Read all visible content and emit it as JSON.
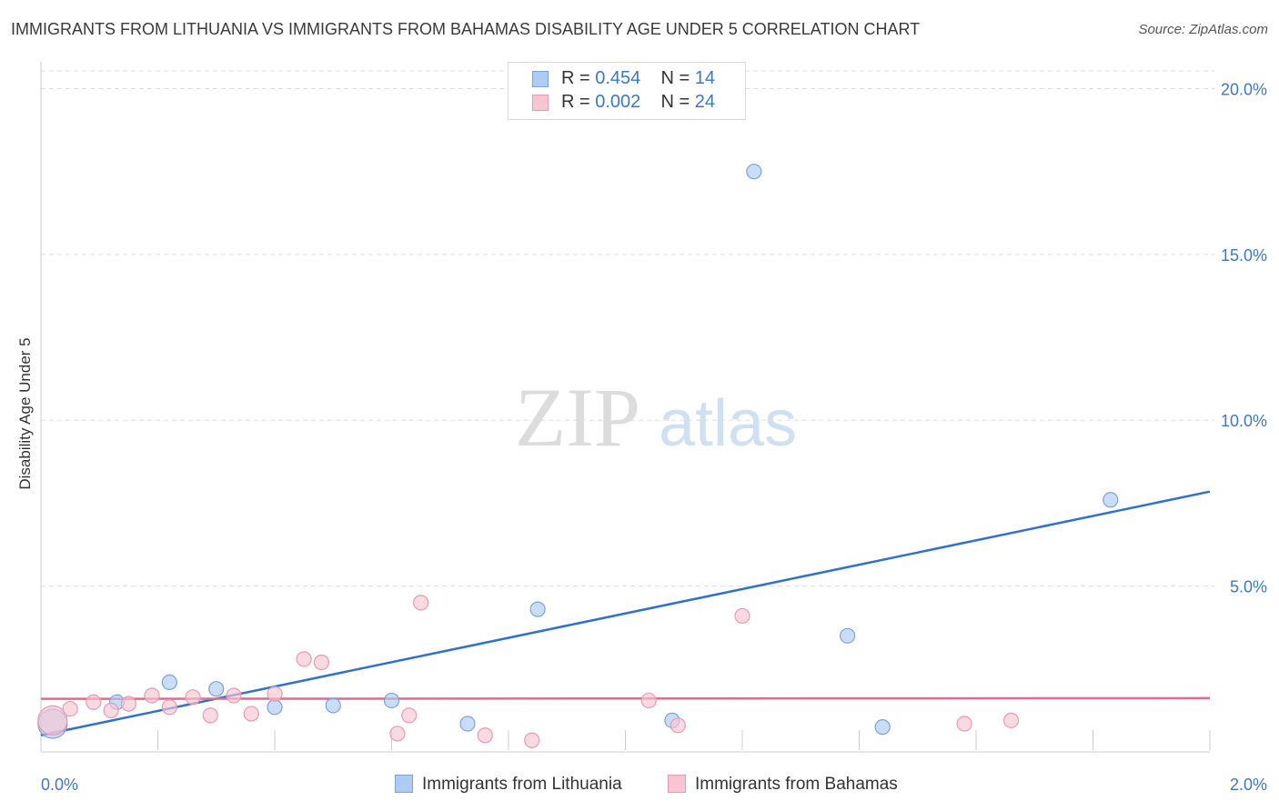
{
  "title": "IMMIGRANTS FROM LITHUANIA VS IMMIGRANTS FROM BAHAMAS DISABILITY AGE UNDER 5 CORRELATION CHART",
  "source": "Source: ZipAtlas.com",
  "watermark": {
    "zip": "ZIP",
    "atlas": "atlas"
  },
  "legend": {
    "rows": [
      {
        "r_label": "R = ",
        "r_value": "0.454",
        "n_label": "N = ",
        "n_value": "14",
        "color": "#aecbf3",
        "border": "#7aa3db"
      },
      {
        "r_label": "R = ",
        "r_value": "0.002",
        "n_label": "N = ",
        "n_value": "24",
        "color": "#f8c6d3",
        "border": "#e79ab0"
      }
    ]
  },
  "colors": {
    "lithuania_fill": "#aecbf3",
    "lithuania_stroke": "#7aa3db",
    "lithuania_line": "#3071d0",
    "bahamas_fill": "#f8c6d3",
    "bahamas_stroke": "#e79ab0",
    "bahamas_line": "#e8678c",
    "tick_label": "#3b78c9",
    "grid": "#dddddd"
  },
  "chart_data": {
    "type": "scatter",
    "title": "IMMIGRANTS FROM LITHUANIA VS IMMIGRANTS FROM BAHAMAS DISABILITY AGE UNDER 5 CORRELATION CHART",
    "xlabel": "",
    "ylabel": "Disability Age Under 5",
    "xlim": [
      0,
      2.0
    ],
    "ylim": [
      0,
      21
    ],
    "x_tick_labels": [
      {
        "value": 0,
        "label": "0.0%"
      },
      {
        "value": 2.0,
        "label": "2.0%"
      }
    ],
    "y_tick_labels": [
      {
        "value": 5,
        "label": "5.0%"
      },
      {
        "value": 10,
        "label": "10.0%"
      },
      {
        "value": 15,
        "label": "15.0%"
      },
      {
        "value": 20,
        "label": "20.0%"
      }
    ],
    "grid": true,
    "legend_position": "top-center",
    "series": [
      {
        "name": "Immigrants from Lithuania",
        "points": [
          {
            "x": 0.02,
            "y": 0.85,
            "large": true
          },
          {
            "x": 0.13,
            "y": 1.5
          },
          {
            "x": 0.22,
            "y": 2.1
          },
          {
            "x": 0.3,
            "y": 1.9
          },
          {
            "x": 0.4,
            "y": 1.35
          },
          {
            "x": 0.5,
            "y": 1.4
          },
          {
            "x": 0.6,
            "y": 1.55
          },
          {
            "x": 0.73,
            "y": 0.85
          },
          {
            "x": 0.85,
            "y": 4.3
          },
          {
            "x": 1.08,
            "y": 0.95
          },
          {
            "x": 1.22,
            "y": 17.5
          },
          {
            "x": 1.38,
            "y": 3.5
          },
          {
            "x": 1.44,
            "y": 0.75
          },
          {
            "x": 1.83,
            "y": 7.6
          }
        ],
        "trend": {
          "x": [
            0.0,
            2.0
          ],
          "y": [
            0.5,
            7.85
          ]
        }
      },
      {
        "name": "Immigrants from Bahamas",
        "points": [
          {
            "x": 0.02,
            "y": 0.95,
            "large": true
          },
          {
            "x": 0.05,
            "y": 1.3
          },
          {
            "x": 0.09,
            "y": 1.5
          },
          {
            "x": 0.12,
            "y": 1.25
          },
          {
            "x": 0.15,
            "y": 1.45
          },
          {
            "x": 0.19,
            "y": 1.7
          },
          {
            "x": 0.22,
            "y": 1.35
          },
          {
            "x": 0.26,
            "y": 1.65
          },
          {
            "x": 0.29,
            "y": 1.1
          },
          {
            "x": 0.33,
            "y": 1.7
          },
          {
            "x": 0.36,
            "y": 1.15
          },
          {
            "x": 0.4,
            "y": 1.75
          },
          {
            "x": 0.45,
            "y": 2.8
          },
          {
            "x": 0.48,
            "y": 2.7
          },
          {
            "x": 0.61,
            "y": 0.55
          },
          {
            "x": 0.63,
            "y": 1.1
          },
          {
            "x": 0.65,
            "y": 4.5
          },
          {
            "x": 0.76,
            "y": 0.5
          },
          {
            "x": 0.84,
            "y": 0.35
          },
          {
            "x": 1.04,
            "y": 1.55
          },
          {
            "x": 1.09,
            "y": 0.8
          },
          {
            "x": 1.2,
            "y": 4.1
          },
          {
            "x": 1.58,
            "y": 0.85
          },
          {
            "x": 1.66,
            "y": 0.95
          }
        ],
        "trend": {
          "x": [
            0.0,
            2.0
          ],
          "y": [
            1.6,
            1.62
          ]
        }
      }
    ]
  }
}
